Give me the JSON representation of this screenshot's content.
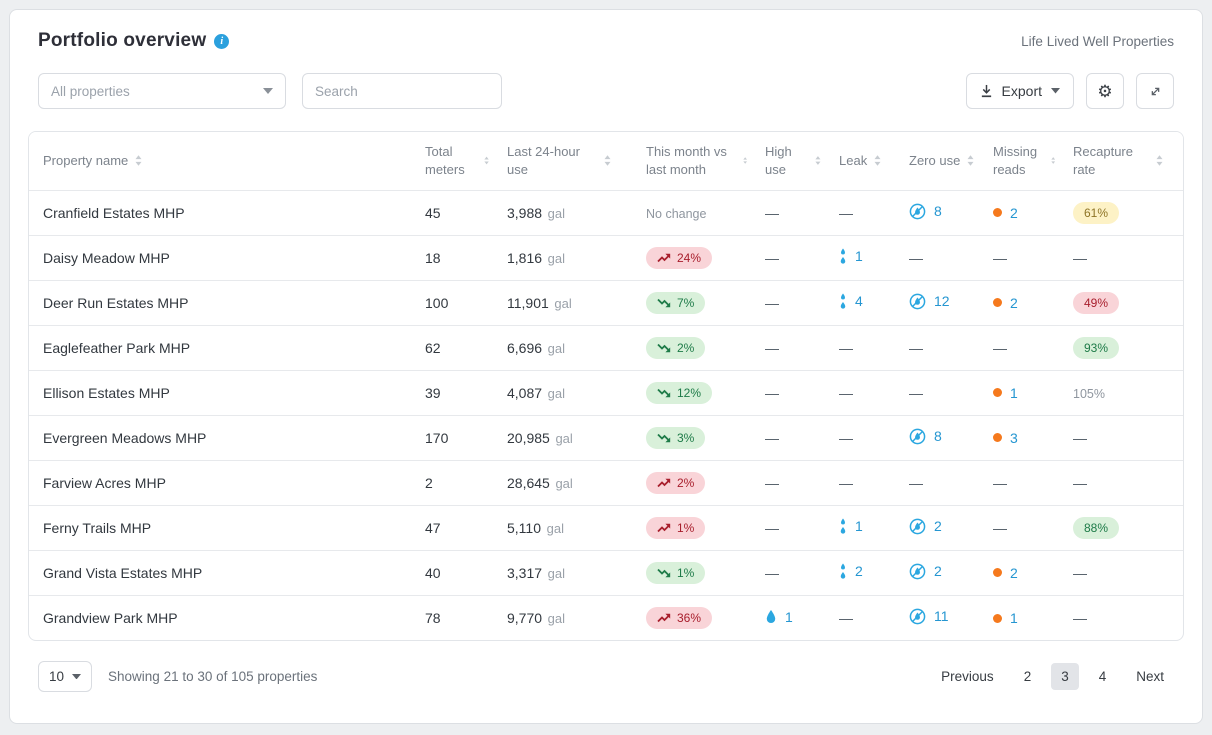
{
  "header": {
    "title": "Portfolio overview",
    "company": "Life Lived Well Properties"
  },
  "toolbar": {
    "filter_value": "All properties",
    "search_placeholder": "Search",
    "export_label": "Export"
  },
  "table": {
    "columns": [
      {
        "label": "Property name"
      },
      {
        "label": "Total meters"
      },
      {
        "label": "Last 24-hour use"
      },
      {
        "label": "This month vs last month"
      },
      {
        "label": "High use"
      },
      {
        "label": "Leak"
      },
      {
        "label": "Zero use"
      },
      {
        "label": "Missing reads"
      },
      {
        "label": "Recapture rate"
      }
    ],
    "unit_gal": "gal",
    "no_change_label": "No change",
    "rows": [
      {
        "name": "Cranfield Estates MHP",
        "total_meters": "45",
        "last24": "3,988",
        "trend": {
          "type": "none"
        },
        "high_use": null,
        "leak": null,
        "zero_use": "8",
        "missing": "2",
        "recapture": {
          "value": "61%",
          "style": "yellow"
        }
      },
      {
        "name": "Daisy Meadow MHP",
        "total_meters": "18",
        "last24": "1,816",
        "trend": {
          "type": "up",
          "value": "24%"
        },
        "high_use": null,
        "leak": "1",
        "zero_use": null,
        "missing": null,
        "recapture": null
      },
      {
        "name": "Deer Run Estates MHP",
        "total_meters": "100",
        "last24": "11,901",
        "trend": {
          "type": "down",
          "value": "7%"
        },
        "high_use": null,
        "leak": "4",
        "zero_use": "12",
        "missing": "2",
        "recapture": {
          "value": "49%",
          "style": "red"
        }
      },
      {
        "name": "Eaglefeather Park MHP",
        "total_meters": "62",
        "last24": "6,696",
        "trend": {
          "type": "down",
          "value": "2%"
        },
        "high_use": null,
        "leak": null,
        "zero_use": null,
        "missing": null,
        "recapture": {
          "value": "93%",
          "style": "green"
        }
      },
      {
        "name": "Ellison Estates MHP",
        "total_meters": "39",
        "last24": "4,087",
        "trend": {
          "type": "down",
          "value": "12%"
        },
        "high_use": null,
        "leak": null,
        "zero_use": null,
        "missing": "1",
        "recapture": {
          "value": "105%",
          "style": "plain"
        }
      },
      {
        "name": "Evergreen Meadows MHP",
        "total_meters": "170",
        "last24": "20,985",
        "trend": {
          "type": "down",
          "value": "3%"
        },
        "high_use": null,
        "leak": null,
        "zero_use": "8",
        "missing": "3",
        "recapture": null
      },
      {
        "name": "Farview Acres MHP",
        "total_meters": "2",
        "last24": "28,645",
        "trend": {
          "type": "up",
          "value": "2%"
        },
        "high_use": null,
        "leak": null,
        "zero_use": null,
        "missing": null,
        "recapture": null
      },
      {
        "name": "Ferny Trails MHP",
        "total_meters": "47",
        "last24": "5,110",
        "trend": {
          "type": "up",
          "value": "1%"
        },
        "high_use": null,
        "leak": "1",
        "zero_use": "2",
        "missing": null,
        "recapture": {
          "value": "88%",
          "style": "green"
        }
      },
      {
        "name": "Grand Vista Estates MHP",
        "total_meters": "40",
        "last24": "3,317",
        "trend": {
          "type": "down",
          "value": "1%"
        },
        "high_use": null,
        "leak": "2",
        "zero_use": "2",
        "missing": "2",
        "recapture": null
      },
      {
        "name": "Grandview Park MHP",
        "total_meters": "78",
        "last24": "9,770",
        "trend": {
          "type": "up",
          "value": "36%"
        },
        "high_use": "1",
        "leak": null,
        "zero_use": "11",
        "missing": "1",
        "recapture": null
      }
    ]
  },
  "footer": {
    "page_size": "10",
    "summary": "Showing 21 to 30 of 105 properties",
    "previous_label": "Previous",
    "pages": [
      "2",
      "3",
      "4"
    ],
    "active_page": "3",
    "next_label": "Next"
  },
  "colors": {
    "accent_blue": "#2ba0dd",
    "count_blue": "#2596d1",
    "alert_orange": "#f5791d",
    "pill_red_bg": "#f9d4d8",
    "pill_red_text": "#a81e2c",
    "pill_green_bg": "#d9f0da",
    "pill_green_text": "#1e7b48",
    "pill_yellow_bg": "#fdf2c6",
    "pill_yellow_text": "#8e7426"
  }
}
